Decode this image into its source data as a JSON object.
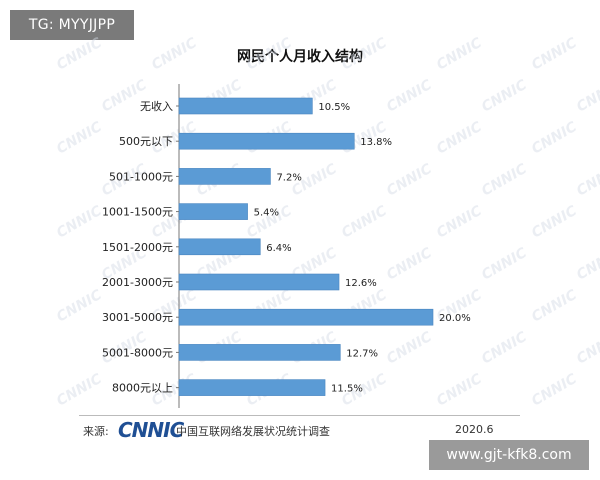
{
  "top_tag": "TG: MYYJJPP",
  "bottom_tag": "www.gjt-kfk8.com",
  "watermark_text": "CNNIC",
  "chart_data": {
    "type": "bar",
    "orientation": "horizontal",
    "title": "网民个人月收入结构",
    "categories": [
      "无收入",
      "500元以下",
      "501-1000元",
      "1001-1500元",
      "1501-2000元",
      "2001-3000元",
      "3001-5000元",
      "5001-8000元",
      "8000元以上"
    ],
    "values": [
      10.5,
      13.8,
      7.2,
      5.4,
      6.4,
      12.6,
      20.0,
      12.7,
      11.5
    ],
    "value_labels": [
      "10.5%",
      "13.8%",
      "7.2%",
      "5.4%",
      "6.4%",
      "12.6%",
      "20.0%",
      "12.7%",
      "11.5%"
    ],
    "bar_color": "#5b9bd5",
    "xlim": [
      0,
      20
    ],
    "grid": false,
    "legend": "none"
  },
  "footer": {
    "source_label": "来源:",
    "logo_text": "CNNIC",
    "source_name": "中国互联网络发展状况统计调查",
    "date": "2020.6"
  }
}
